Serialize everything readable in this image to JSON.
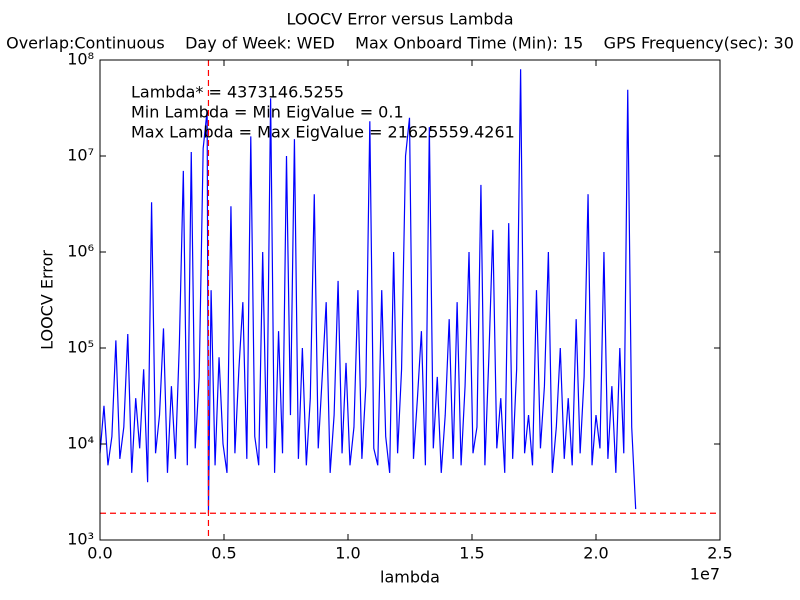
{
  "chart_data": {
    "type": "line",
    "title": "LOOCV Error versus Lambda",
    "subtitle": "Overlap:Continuous    Day of Week: WED    Max Onboard Time (Min): 15    GPS Frequency(sec): 30",
    "x_label": "lambda",
    "y_label": "LOOCV Error",
    "x_offset_label": "1e7",
    "annotations": [
      "Lambda* = 4373146.5255",
      "Min Lambda = Min EigValue = 0.1",
      "Max Lambda = Max EigValue = 21625559.4261"
    ],
    "log_y": true,
    "color": "#0000ff",
    "reference_lines": {
      "x": 4373146.5255,
      "y": 1900,
      "color": "#ff0000"
    },
    "xlim": [
      0,
      25000000
    ],
    "xticks": [
      {
        "value": 0,
        "label": "0.0"
      },
      {
        "value": 5000000,
        "label": "0.5"
      },
      {
        "value": 10000000,
        "label": "1.0"
      },
      {
        "value": 15000000,
        "label": "1.5"
      },
      {
        "value": 20000000,
        "label": "2.0"
      },
      {
        "value": 25000000,
        "label": "2.5"
      }
    ],
    "ylim": [
      1000,
      100000000
    ],
    "yticks": [
      {
        "value": 1000,
        "label": "10³"
      },
      {
        "value": 10000,
        "label": "10⁴"
      },
      {
        "value": 100000,
        "label": "10⁵"
      },
      {
        "value": 1000000,
        "label": "10⁶"
      },
      {
        "value": 10000000,
        "label": "10⁷"
      },
      {
        "value": 100000000,
        "label": "10⁸"
      }
    ],
    "x": [
      0,
      160000,
      320000,
      480000,
      640000,
      800000,
      960000,
      1120000,
      1280000,
      1440000,
      1600000,
      1760000,
      1920000,
      2080000,
      2240000,
      2400000,
      2560000,
      2720000,
      2880000,
      3040000,
      3200000,
      3360000,
      3520000,
      3680000,
      3840000,
      4000000,
      4160000,
      4320000,
      4373146.5255,
      4480000,
      4640000,
      4800000,
      4960000,
      5120000,
      5280000,
      5440000,
      5600000,
      5760000,
      5920000,
      6080000,
      6240000,
      6400000,
      6560000,
      6720000,
      6880000,
      7040000,
      7200000,
      7360000,
      7520000,
      7680000,
      7840000,
      8000000,
      8160000,
      8320000,
      8480000,
      8640000,
      8800000,
      8960000,
      9120000,
      9280000,
      9440000,
      9600000,
      9760000,
      9920000,
      10080000,
      10240000,
      10400000,
      10560000,
      10720000,
      10880000,
      11040000,
      11200000,
      11360000,
      11520000,
      11680000,
      11840000,
      12000000,
      12160000,
      12320000,
      12480000,
      12640000,
      12800000,
      12960000,
      13120000,
      13280000,
      13440000,
      13600000,
      13760000,
      13920000,
      14080000,
      14240000,
      14400000,
      14560000,
      14720000,
      14880000,
      15040000,
      15200000,
      15360000,
      15520000,
      15680000,
      15840000,
      16000000,
      16160000,
      16320000,
      16480000,
      16640000,
      16800000,
      16960000,
      17120000,
      17280000,
      17440000,
      17600000,
      17760000,
      17920000,
      18080000,
      18240000,
      18400000,
      18560000,
      18720000,
      18880000,
      19040000,
      19200000,
      19360000,
      19520000,
      19680000,
      19840000,
      20000000,
      20160000,
      20320000,
      20480000,
      20640000,
      20800000,
      20960000,
      21120000,
      21280000,
      21440000,
      21600000
    ],
    "values": [
      8000,
      25000,
      6000,
      12000,
      120000,
      7000,
      15000,
      140000,
      5000,
      30000,
      9000,
      60000,
      4000,
      3300000,
      8000,
      20000,
      160000,
      5000,
      40000,
      7000,
      110000,
      7000000,
      6000,
      11000000,
      9000,
      50000,
      12000000,
      30000000,
      1900,
      400000,
      6000,
      80000,
      10000,
      5000,
      3000000,
      8000,
      60000,
      300000,
      7000,
      16000000,
      12000,
      6000,
      1000000,
      9000,
      40000000,
      5000,
      150000,
      8000,
      10000000,
      20000,
      15000000,
      7000,
      100000,
      6000,
      30000,
      4000000,
      9000,
      50000,
      300000,
      5000,
      20000,
      500000,
      8000,
      70000,
      6000,
      15000,
      400000,
      7000,
      40000,
      23000000,
      9000,
      6000,
      400000,
      12000,
      5000,
      1000000,
      8000,
      60000,
      10000000,
      25000000,
      7000,
      30000,
      150000,
      6000,
      20000000,
      9000,
      50000,
      5000,
      20000,
      200000,
      7000,
      300000,
      6000,
      40000,
      1000000,
      8000,
      15000,
      5000000,
      6000,
      80000,
      1700000,
      9000,
      30000,
      5000,
      2000000,
      7000,
      60000,
      80000000,
      8000,
      20000,
      6000,
      400000,
      9000,
      40000,
      1000000,
      5000,
      15000,
      100000,
      7000,
      30000,
      6000,
      200000,
      8000,
      50000,
      4000000,
      6000,
      20000,
      9000,
      1000000,
      7000,
      40000,
      5000,
      100000,
      8000,
      49000000,
      15000,
      2100
    ]
  }
}
